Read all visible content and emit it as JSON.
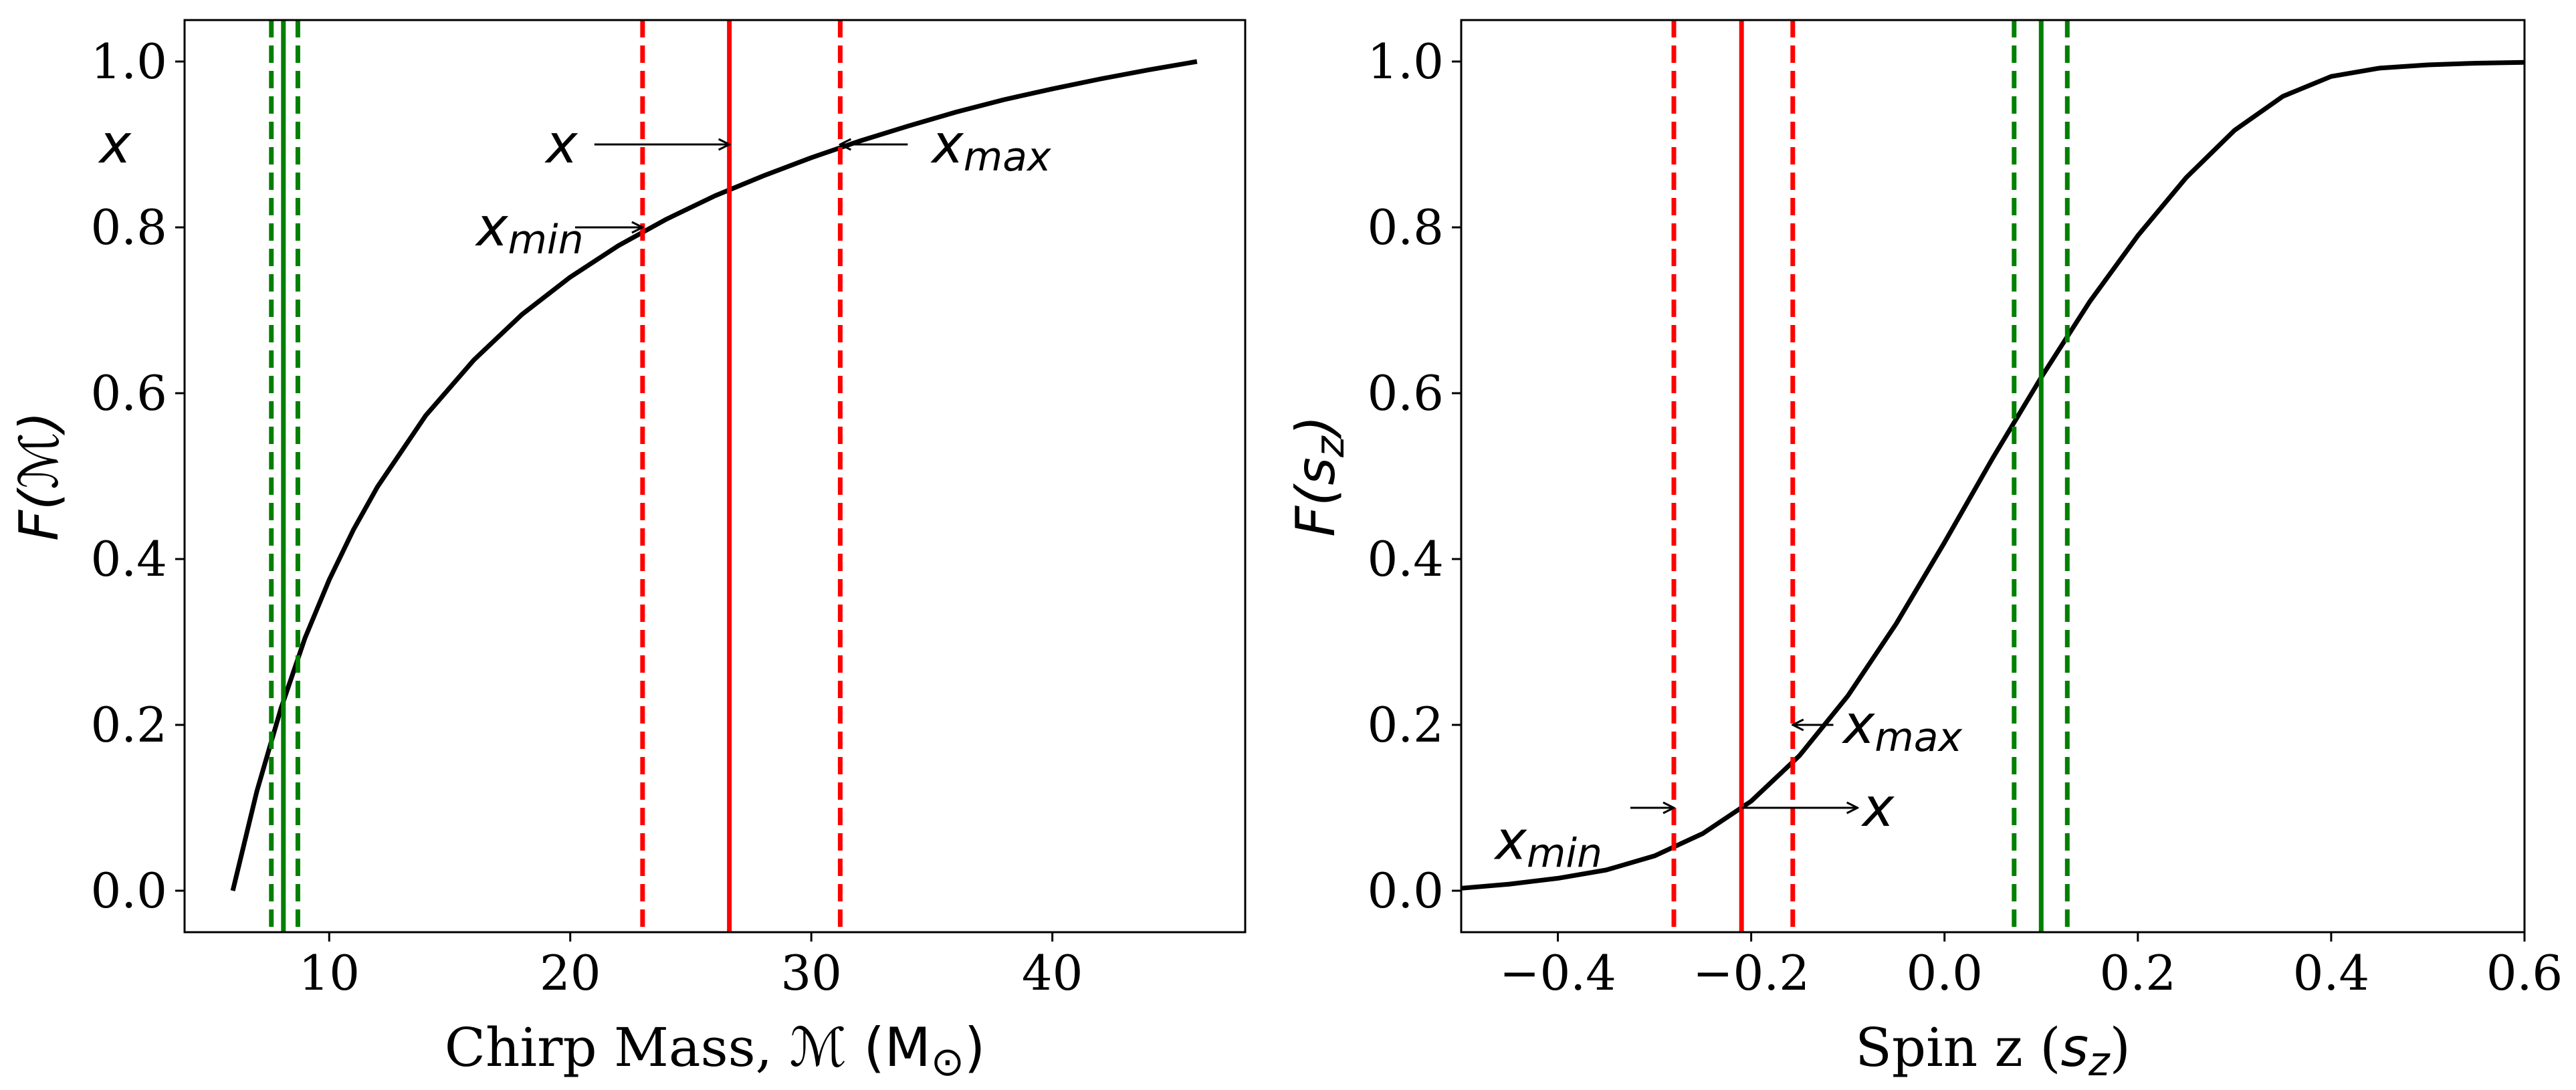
{
  "chart_data": [
    {
      "type": "line",
      "panel": "left",
      "xlabel_text": "Chirp Mass, ",
      "xlabel_symbol": "ℳ",
      "xlabel_unit": "(M",
      "xlabel_unit_sub": "⊙",
      "xlabel_close": ")",
      "ylabel_text": "F(",
      "ylabel_symbol": "ℳ",
      "ylabel_close": ")",
      "xlim": [
        4,
        48
      ],
      "ylim": [
        -0.05,
        1.05
      ],
      "xticks": [
        10,
        20,
        30,
        40
      ],
      "xtick_labels": [
        "10",
        "20",
        "30",
        "40"
      ],
      "yticks": [
        0.0,
        0.2,
        0.4,
        0.6,
        0.8,
        1.0
      ],
      "ytick_labels": [
        "0.0",
        "0.2",
        "0.4",
        "0.6",
        "0.8",
        "1.0"
      ],
      "curve": {
        "name": "F(M)",
        "color": "#000000",
        "x": [
          6,
          7,
          8,
          9,
          10,
          11,
          12,
          14,
          16,
          18,
          20,
          22,
          24,
          26,
          28,
          30,
          32,
          34,
          36,
          38,
          40,
          42,
          44,
          46
        ],
        "y": [
          0.0,
          0.12,
          0.22,
          0.305,
          0.375,
          0.435,
          0.487,
          0.573,
          0.64,
          0.695,
          0.74,
          0.778,
          0.81,
          0.838,
          0.862,
          0.884,
          0.904,
          0.922,
          0.939,
          0.954,
          0.967,
          0.979,
          0.99,
          1.0
        ]
      },
      "vlines": [
        {
          "name": "green-dashed-left",
          "x": 7.6,
          "color": "#008000",
          "style": "dashed"
        },
        {
          "name": "green-solid",
          "x": 8.1,
          "color": "#008000",
          "style": "solid"
        },
        {
          "name": "green-dashed-right",
          "x": 8.7,
          "color": "#008000",
          "style": "dashed"
        },
        {
          "name": "red-dashed-min",
          "x": 23.0,
          "color": "#ff0000",
          "style": "dashed"
        },
        {
          "name": "red-solid",
          "x": 26.6,
          "color": "#ff0000",
          "style": "solid"
        },
        {
          "name": "red-dashed-max",
          "x": 31.2,
          "color": "#ff0000",
          "style": "dashed"
        }
      ],
      "side_label": "x",
      "side_label_y": 0.9,
      "annotations": [
        {
          "name": "x-annotation",
          "text": "x",
          "sub": "",
          "text_x": 20.3,
          "text_y": 0.9,
          "arrow_from": [
            21.0,
            0.9
          ],
          "arrow_to": [
            26.6,
            0.9
          ],
          "anchor": "end"
        },
        {
          "name": "xmax-annotation",
          "text": "x",
          "sub": "max",
          "text_x": 35.0,
          "text_y": 0.9,
          "arrow_from": [
            34.0,
            0.9
          ],
          "arrow_to": [
            31.2,
            0.9
          ],
          "anchor": "start"
        },
        {
          "name": "xmin-annotation",
          "text": "x",
          "sub": "min",
          "text_x": 16.1,
          "text_y": 0.8,
          "arrow_from": [
            20.2,
            0.8
          ],
          "arrow_to": [
            23.0,
            0.8
          ],
          "anchor": "start"
        }
      ]
    },
    {
      "type": "line",
      "panel": "right",
      "xlabel_text": "Spin z (",
      "xlabel_symbol": "s",
      "xlabel_sub": "z",
      "xlabel_close": ")",
      "ylabel_text": "F(",
      "ylabel_symbol": "s",
      "ylabel_sub": "z",
      "ylabel_close": ")",
      "xlim": [
        -0.5,
        0.6
      ],
      "ylim": [
        -0.05,
        1.05
      ],
      "xticks": [
        -0.4,
        -0.2,
        0.0,
        0.2,
        0.4,
        0.6
      ],
      "xtick_labels": [
        "−0.4",
        "−0.2",
        "0.0",
        "0.2",
        "0.4",
        "0.6"
      ],
      "yticks": [
        0.0,
        0.2,
        0.4,
        0.6,
        0.8,
        1.0
      ],
      "ytick_labels": [
        "0.0",
        "0.2",
        "0.4",
        "0.6",
        "0.8",
        "1.0"
      ],
      "curve": {
        "name": "F(sz)",
        "color": "#000000",
        "x": [
          -0.5,
          -0.45,
          -0.4,
          -0.35,
          -0.3,
          -0.25,
          -0.2,
          -0.15,
          -0.1,
          -0.05,
          0.0,
          0.05,
          0.1,
          0.15,
          0.2,
          0.25,
          0.3,
          0.35,
          0.4,
          0.45,
          0.5,
          0.55,
          0.6
        ],
        "y": [
          0.003,
          0.008,
          0.015,
          0.025,
          0.042,
          0.069,
          0.108,
          0.163,
          0.235,
          0.322,
          0.42,
          0.522,
          0.619,
          0.71,
          0.79,
          0.86,
          0.917,
          0.958,
          0.982,
          0.992,
          0.996,
          0.998,
          0.999
        ]
      },
      "vlines": [
        {
          "name": "red-dashed-min",
          "x": -0.28,
          "color": "#ff0000",
          "style": "dashed"
        },
        {
          "name": "red-solid",
          "x": -0.21,
          "color": "#ff0000",
          "style": "solid"
        },
        {
          "name": "red-dashed-max",
          "x": -0.157,
          "color": "#ff0000",
          "style": "dashed"
        },
        {
          "name": "green-dashed-left",
          "x": 0.072,
          "color": "#008000",
          "style": "dashed"
        },
        {
          "name": "green-solid",
          "x": 0.1,
          "color": "#008000",
          "style": "solid"
        },
        {
          "name": "green-dashed-right",
          "x": 0.127,
          "color": "#008000",
          "style": "dashed"
        }
      ],
      "annotations": [
        {
          "name": "xmax-annotation",
          "text": "x",
          "sub": "max",
          "text_x": -0.105,
          "text_y": 0.2,
          "arrow_from": [
            -0.115,
            0.2
          ],
          "arrow_to": [
            -0.157,
            0.2
          ],
          "anchor": "start"
        },
        {
          "name": "x-annotation",
          "text": "x",
          "sub": "",
          "text_x": -0.085,
          "text_y": 0.1,
          "arrow_from": [
            -0.21,
            0.1
          ],
          "arrow_to": [
            -0.09,
            0.1
          ],
          "anchor": "start"
        },
        {
          "name": "xmin-annotation",
          "text": "x",
          "sub": "min",
          "text_x": -0.465,
          "text_y": 0.06,
          "arrow_from": [
            -0.325,
            0.1
          ],
          "arrow_to": [
            -0.28,
            0.1
          ],
          "anchor": "start"
        }
      ]
    }
  ]
}
